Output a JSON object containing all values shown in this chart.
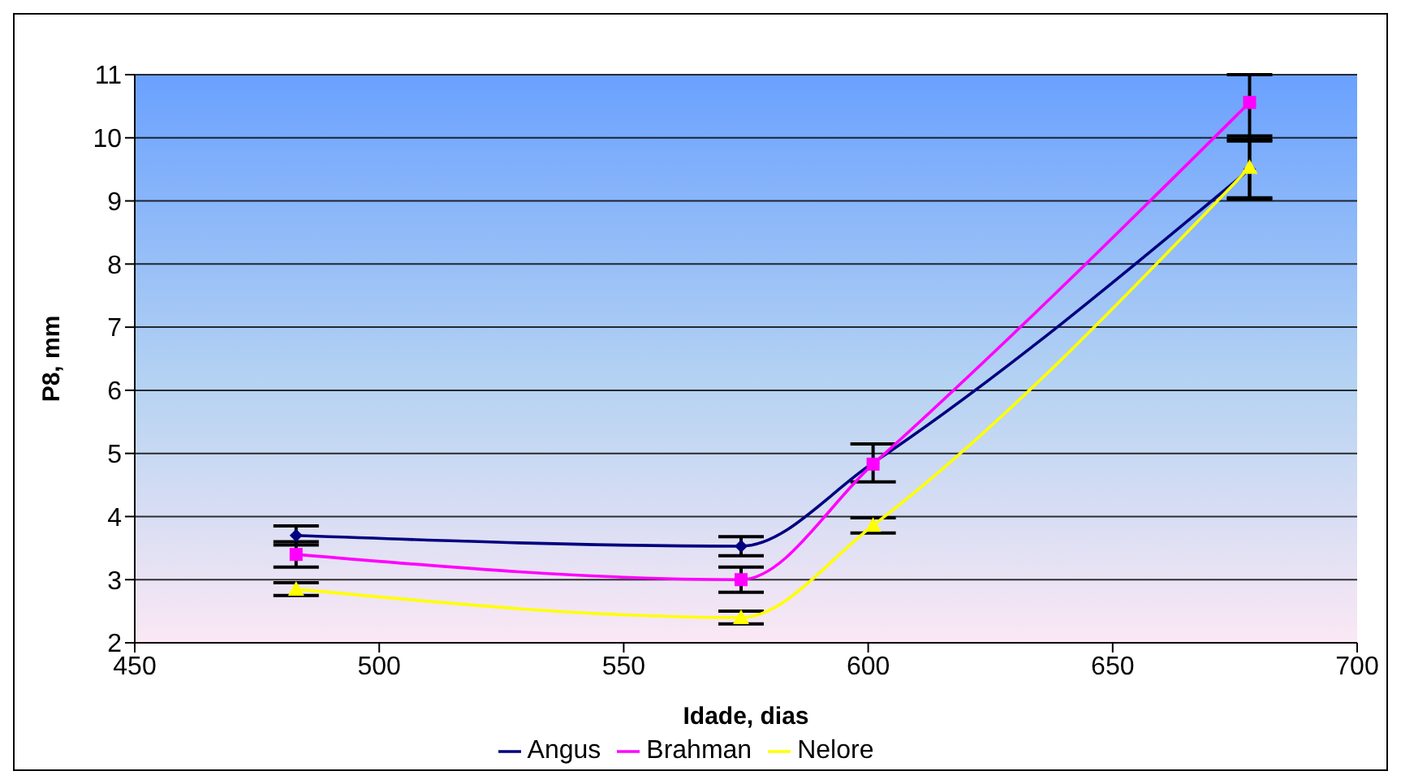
{
  "chart_data": {
    "type": "line",
    "xlabel": "Idade, dias",
    "ylabel": "P8, mm",
    "x": [
      483,
      574,
      601,
      678
    ],
    "series": [
      {
        "name": "Angus",
        "color": "#000080",
        "marker": "diamond",
        "values": [
          3.7,
          3.53,
          4.85,
          9.5
        ],
        "errors": [
          0.15,
          0.15,
          0.3,
          0.45
        ]
      },
      {
        "name": "Brahman",
        "color": "#ff00ff",
        "marker": "square",
        "values": [
          3.4,
          3.0,
          4.83,
          10.56
        ],
        "errors": [
          0.2,
          0.2,
          null,
          [
            9.97,
            11
          ]
        ]
      },
      {
        "name": "Nelore",
        "color": "#ffff00",
        "marker": "triangle",
        "values": [
          2.85,
          2.4,
          3.86,
          9.53
        ],
        "errors": [
          0.1,
          0.1,
          0.12,
          0.5
        ]
      }
    ],
    "xlim": [
      450,
      700
    ],
    "xticks": [
      450,
      500,
      550,
      600,
      650,
      700
    ],
    "ylim": [
      2,
      11
    ],
    "yticks": [
      2,
      3,
      4,
      5,
      6,
      7,
      8,
      9,
      10,
      11
    ],
    "grid": "y",
    "legend": "bottom"
  }
}
